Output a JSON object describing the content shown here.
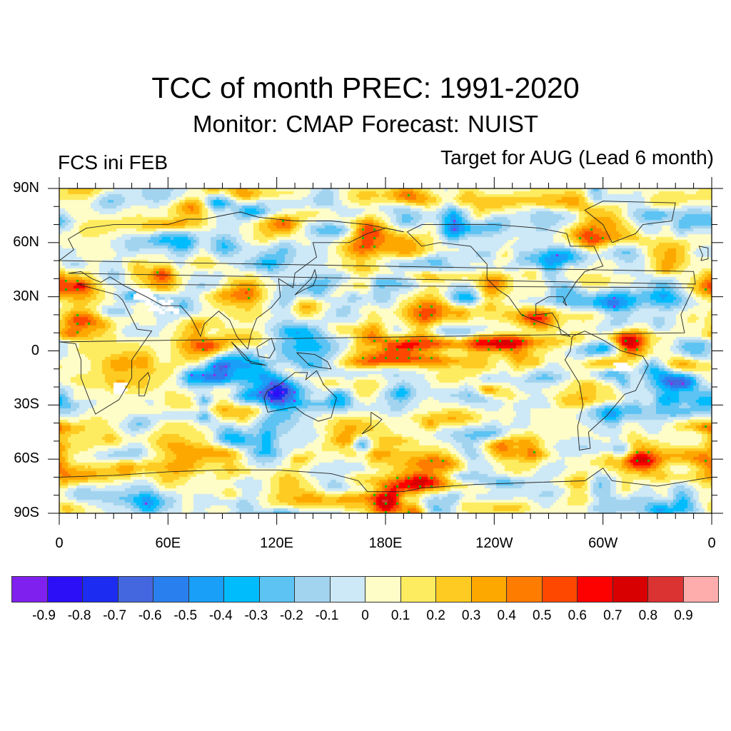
{
  "titles": {
    "main": "TCC of month PREC: 1991-2020",
    "sub": "Monitor: CMAP   Forecast: NUIST",
    "left": "FCS ini FEB",
    "right": "Target for AUG (Lead 6 month)"
  },
  "chart_data": {
    "type": "heatmap",
    "title": "TCC of month PREC: 1991-2020",
    "subtitle": "Monitor: CMAP   Forecast: NUIST",
    "left_string": "FCS ini FEB",
    "right_string": "Target for AUG (Lead 6 month)",
    "projection": "cylindrical equidistant, centered on 180",
    "x_axis": {
      "range": [
        0,
        360
      ],
      "ticks": [
        "0",
        "60E",
        "120E",
        "180E",
        "120W",
        "60W",
        "0"
      ],
      "tick_values": [
        0,
        60,
        120,
        180,
        240,
        300,
        360
      ]
    },
    "y_axis": {
      "range": [
        -90,
        90
      ],
      "ticks": [
        "90S",
        "60S",
        "30S",
        "0",
        "30N",
        "60N",
        "90N"
      ],
      "tick_values": [
        -90,
        -60,
        -30,
        0,
        30,
        60,
        90
      ]
    },
    "colorbar": {
      "levels": [
        "-0.9",
        "-0.8",
        "-0.7",
        "-0.6",
        "-0.5",
        "-0.4",
        "-0.3",
        "-0.2",
        "-0.1",
        "0",
        "0.1",
        "0.2",
        "0.3",
        "0.4",
        "0.5",
        "0.6",
        "0.7",
        "0.8",
        "0.9"
      ],
      "colors": [
        "#8020ee",
        "#2c0ef7",
        "#1c2cf0",
        "#4466de",
        "#2a7fee",
        "#1a9ff8",
        "#00bcfc",
        "#5cc3f3",
        "#a2d4f0",
        "#cde8f6",
        "#fefdc8",
        "#feec60",
        "#fdcb22",
        "#fda800",
        "#fe7c00",
        "#fe4800",
        "#fd0000",
        "#d80000",
        "#db3232",
        "#feacac"
      ],
      "placement": "bottom"
    },
    "significance_markers": {
      "positive": "#00c800",
      "negative": "#a020f0"
    },
    "features": [
      {
        "region": "Equatorial central-eastern Pacific (170E-100W, 10S-10N)",
        "value_range": [
          0.6,
          0.8
        ]
      },
      {
        "region": "Central North Pacific (~20N, 160W)",
        "value_range": [
          0.4,
          0.6
        ]
      },
      {
        "region": "Western Pacific warm pool / New Guinea",
        "value_range": [
          -0.6,
          -0.4
        ]
      },
      {
        "region": "Southern Ocean near Ross Sea (~75S, 150W-180)",
        "value_range": [
          0.3,
          0.5
        ]
      },
      {
        "region": "Southern Indian Ocean (~50S, 60-90E)",
        "value_range": [
          0.3,
          0.5
        ]
      },
      {
        "region": "Greenland / northeastern Canada",
        "value_range": [
          0.3,
          0.5
        ]
      },
      {
        "region": "Missing data patches (Sahara/Arabia, Madagascar, NE Brazil)",
        "value_range": null
      }
    ]
  }
}
